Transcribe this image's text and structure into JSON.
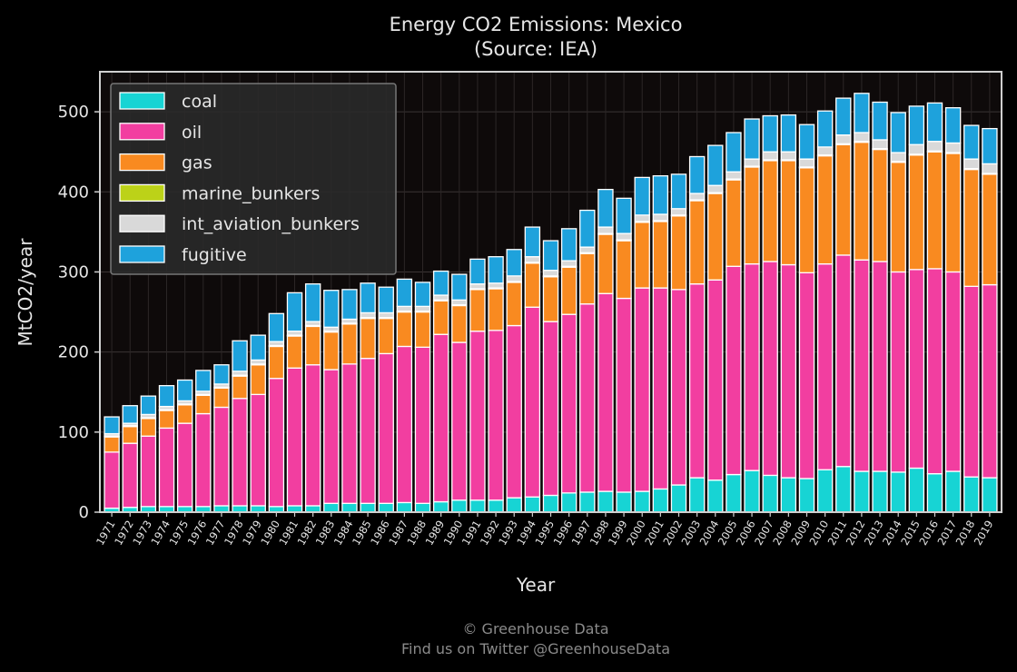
{
  "chart_data": {
    "type": "bar",
    "stacked": true,
    "title": "Energy CO2 Emissions: Mexico",
    "subtitle": "(Source: IEA)",
    "xlabel": "Year",
    "ylabel": "MtCO2/year",
    "ylim": [
      0,
      550
    ],
    "yticks": [
      0,
      100,
      200,
      300,
      400,
      500
    ],
    "grid": true,
    "legend_position": "top-left",
    "categories": [
      "1971",
      "1972",
      "1973",
      "1974",
      "1975",
      "1976",
      "1977",
      "1978",
      "1979",
      "1980",
      "1981",
      "1982",
      "1983",
      "1984",
      "1985",
      "1986",
      "1987",
      "1988",
      "1989",
      "1990",
      "1991",
      "1992",
      "1993",
      "1994",
      "1995",
      "1996",
      "1997",
      "1998",
      "1999",
      "2000",
      "2001",
      "2002",
      "2003",
      "2004",
      "2005",
      "2006",
      "2007",
      "2008",
      "2009",
      "2010",
      "2011",
      "2012",
      "2013",
      "2014",
      "2015",
      "2016",
      "2017",
      "2018",
      "2019"
    ],
    "series": [
      {
        "name": "coal",
        "color": "#17d4d4",
        "values": [
          5,
          6,
          7,
          7,
          7,
          7,
          8,
          8,
          8,
          7,
          8,
          8,
          11,
          11,
          11,
          11,
          12,
          11,
          13,
          15,
          15,
          15,
          18,
          19,
          21,
          24,
          25,
          26,
          25,
          26,
          29,
          34,
          43,
          40,
          47,
          52,
          46,
          43,
          42,
          53,
          57,
          51,
          51,
          50,
          55,
          48,
          51,
          44,
          43
        ]
      },
      {
        "name": "oil",
        "color": "#f23ea0",
        "values": [
          70,
          80,
          88,
          98,
          104,
          116,
          123,
          134,
          139,
          160,
          172,
          176,
          167,
          174,
          181,
          187,
          195,
          195,
          209,
          197,
          211,
          212,
          215,
          237,
          217,
          223,
          235,
          247,
          242,
          254,
          251,
          244,
          242,
          250,
          260,
          258,
          267,
          266,
          257,
          257,
          264,
          264,
          262,
          250,
          248,
          256,
          249,
          238,
          241
        ]
      },
      {
        "name": "gas",
        "color": "#f98a20",
        "values": [
          19,
          21,
          22,
          22,
          23,
          23,
          24,
          28,
          37,
          40,
          40,
          48,
          47,
          50,
          50,
          44,
          43,
          44,
          42,
          46,
          52,
          52,
          54,
          55,
          56,
          59,
          63,
          74,
          72,
          82,
          83,
          92,
          104,
          108,
          108,
          121,
          126,
          130,
          131,
          135,
          138,
          147,
          140,
          137,
          143,
          146,
          148,
          146,
          138
        ]
      },
      {
        "name": "marine_bunkers",
        "color": "#bcd218",
        "values": [
          1,
          1,
          1,
          1,
          1,
          1,
          1,
          1,
          1,
          1,
          1,
          1,
          1,
          1,
          1,
          1,
          1,
          1,
          1,
          1,
          1,
          1,
          1,
          1,
          1,
          1,
          1,
          1,
          1,
          1,
          1,
          1,
          1,
          1,
          1,
          1,
          1,
          1,
          1,
          1,
          1,
          1,
          1,
          1,
          1,
          1,
          1,
          1,
          1
        ]
      },
      {
        "name": "int_aviation_bunkers",
        "color": "#d9d9d9",
        "values": [
          3,
          3,
          4,
          4,
          4,
          4,
          4,
          5,
          5,
          5,
          5,
          5,
          5,
          5,
          6,
          6,
          6,
          6,
          6,
          6,
          6,
          6,
          7,
          7,
          7,
          7,
          7,
          8,
          8,
          8,
          8,
          8,
          8,
          9,
          9,
          9,
          10,
          10,
          10,
          10,
          11,
          11,
          11,
          11,
          12,
          12,
          12,
          12,
          12
        ]
      },
      {
        "name": "fugitive",
        "color": "#1ea2dc",
        "values": [
          21,
          22,
          23,
          26,
          26,
          26,
          24,
          38,
          31,
          35,
          48,
          47,
          46,
          37,
          37,
          32,
          34,
          30,
          30,
          32,
          31,
          33,
          33,
          37,
          37,
          40,
          46,
          47,
          44,
          47,
          48,
          43,
          46,
          50,
          49,
          50,
          45,
          46,
          43,
          45,
          46,
          49,
          47,
          50,
          48,
          48,
          44,
          42,
          44
        ]
      }
    ],
    "footer": {
      "line1": "© Greenhouse Data",
      "line2": "Find us on Twitter @GreenhouseData"
    }
  }
}
